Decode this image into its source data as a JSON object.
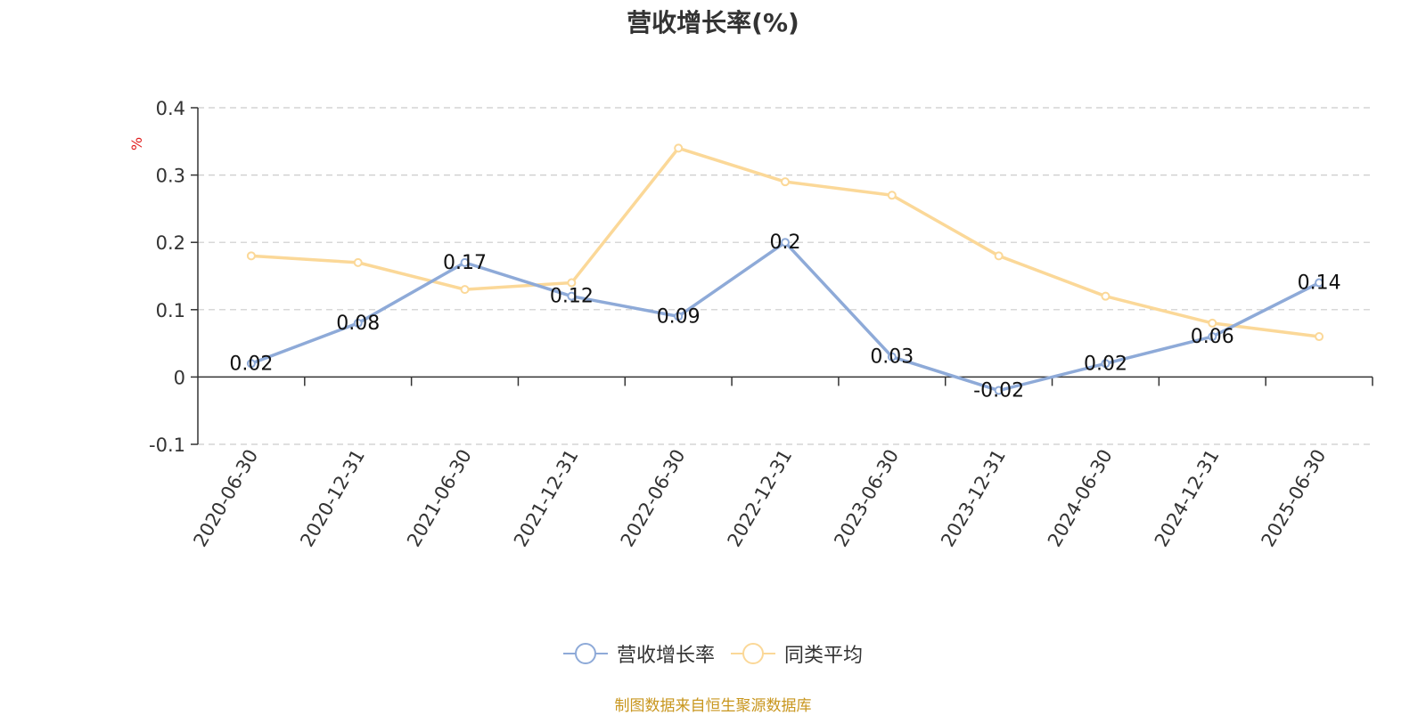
{
  "chart_data": {
    "type": "line",
    "title": "营收增长率(%)",
    "ylabel": "%",
    "ylim": [
      -0.1,
      0.4
    ],
    "yticks": [
      -0.1,
      0,
      0.1,
      0.2,
      0.3,
      0.4
    ],
    "ytick_labels": [
      "-0.1",
      "0",
      "0.1",
      "0.2",
      "0.3",
      "0.4"
    ],
    "grid": true,
    "legend_position": "bottom-center",
    "categories": [
      "2020-06-30",
      "2020-12-31",
      "2021-06-30",
      "2021-12-31",
      "2022-06-30",
      "2022-12-31",
      "2023-06-30",
      "2023-12-31",
      "2024-06-30",
      "2024-12-31",
      "2025-06-30"
    ],
    "series": [
      {
        "name": "营收增长率",
        "color": "#8eaad8",
        "values": [
          0.02,
          0.08,
          0.17,
          0.12,
          0.09,
          0.2,
          0.03,
          -0.02,
          0.02,
          0.06,
          0.14
        ],
        "data_labels": [
          "0.02",
          "0.08",
          "0.17",
          "0.12",
          "0.09",
          "0.2",
          "0.03",
          "-0.02",
          "0.02",
          "0.06",
          "0.14"
        ]
      },
      {
        "name": "同类平均",
        "color": "#fbd898",
        "values": [
          0.18,
          0.17,
          0.13,
          0.14,
          0.34,
          0.29,
          0.27,
          0.18,
          0.12,
          0.08,
          0.06
        ]
      }
    ]
  },
  "footer": {
    "source": "制图数据来自恒生聚源数据库"
  }
}
